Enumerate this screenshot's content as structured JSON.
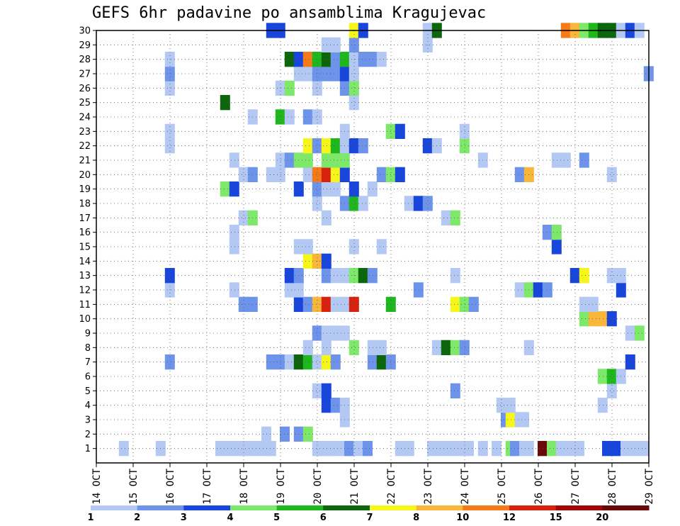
{
  "chart_data": {
    "type": "heatmap",
    "title": "GEFS 6hr padavine po ansamblima Kragujevac",
    "xlabel": "",
    "ylabel": "",
    "x_tick_labels": [
      "14 OCT",
      "15 OCT",
      "16 OCT",
      "17 OCT",
      "18 OCT",
      "19 OCT",
      "20 OCT",
      "21 OCT",
      "22 OCT",
      "23 OCT",
      "24 OCT",
      "25 OCT",
      "26 OCT",
      "27 OCT",
      "28 OCT",
      "29 OCT"
    ],
    "y_tick_labels": [
      "1",
      "2",
      "3",
      "4",
      "5",
      "6",
      "7",
      "8",
      "9",
      "10",
      "11",
      "12",
      "13",
      "14",
      "15",
      "16",
      "17",
      "18",
      "19",
      "20",
      "21",
      "22",
      "23",
      "24",
      "25",
      "26",
      "27",
      "28",
      "29",
      "30"
    ],
    "x_range_days": [
      0,
      15
    ],
    "y_range_members": [
      0,
      30
    ],
    "x_step_hours": 6,
    "grid": true,
    "colorbar": {
      "labels": [
        "1",
        "2",
        "3",
        "4",
        "5",
        "6",
        "7",
        "8",
        "10",
        "12",
        "15",
        "20"
      ],
      "colors": [
        "#b4c8f4",
        "#6d93ea",
        "#1846dc",
        "#7de86a",
        "#1eb81e",
        "#0c660c",
        "#f6f61a",
        "#f8b63a",
        "#f57a18",
        "#d8220e",
        "#a00808",
        "#6a0808"
      ]
    },
    "cells": [
      [
        0.63,
        1,
        1
      ],
      [
        1.63,
        1,
        1
      ],
      [
        3.25,
        1,
        1
      ],
      [
        3.5,
        1,
        1
      ],
      [
        3.75,
        1,
        1
      ],
      [
        4.0,
        1,
        1
      ],
      [
        4.25,
        1,
        1
      ],
      [
        4.5,
        1,
        1
      ],
      [
        4.63,
        1,
        1
      ],
      [
        5.88,
        1,
        1
      ],
      [
        6.0,
        1,
        1
      ],
      [
        6.13,
        1,
        1
      ],
      [
        6.25,
        1,
        1
      ],
      [
        6.38,
        1,
        1
      ],
      [
        6.63,
        1,
        1
      ],
      [
        6.75,
        1,
        2
      ],
      [
        7.0,
        1,
        1
      ],
      [
        7.25,
        1,
        2
      ],
      [
        8.13,
        1,
        1
      ],
      [
        8.25,
        1,
        1
      ],
      [
        8.38,
        1,
        1
      ],
      [
        9.0,
        1,
        1
      ],
      [
        9.25,
        1,
        1
      ],
      [
        9.5,
        1,
        1
      ],
      [
        9.75,
        1,
        1
      ],
      [
        10.0,
        1,
        1
      ],
      [
        10.38,
        1,
        1
      ],
      [
        10.75,
        1,
        1
      ],
      [
        11.13,
        1,
        4
      ],
      [
        11.25,
        1,
        2
      ],
      [
        11.5,
        1,
        1
      ],
      [
        11.63,
        1,
        1
      ],
      [
        12.0,
        1,
        12
      ],
      [
        12.25,
        1,
        4
      ],
      [
        12.5,
        1,
        1
      ],
      [
        12.75,
        1,
        1
      ],
      [
        13.0,
        1,
        1
      ],
      [
        13.75,
        1,
        3
      ],
      [
        14.0,
        1,
        3
      ],
      [
        14.25,
        1,
        1
      ],
      [
        14.5,
        1,
        1
      ],
      [
        14.75,
        1,
        1
      ],
      [
        4.5,
        2,
        1
      ],
      [
        5.0,
        2,
        2
      ],
      [
        5.38,
        2,
        2
      ],
      [
        5.63,
        2,
        4
      ],
      [
        6.63,
        3,
        1
      ],
      [
        11.0,
        3,
        2
      ],
      [
        11.13,
        3,
        7
      ],
      [
        11.38,
        3,
        1
      ],
      [
        11.5,
        3,
        1
      ],
      [
        6.13,
        4,
        3
      ],
      [
        6.38,
        4,
        2
      ],
      [
        6.63,
        4,
        1
      ],
      [
        10.88,
        4,
        1
      ],
      [
        11.13,
        4,
        1
      ],
      [
        13.63,
        4,
        1
      ],
      [
        5.88,
        5,
        1
      ],
      [
        6.13,
        5,
        3
      ],
      [
        9.63,
        5,
        2
      ],
      [
        13.88,
        5,
        1
      ],
      [
        13.63,
        6,
        4
      ],
      [
        13.88,
        6,
        5
      ],
      [
        14.13,
        6,
        1
      ],
      [
        1.88,
        7,
        2
      ],
      [
        4.63,
        7,
        2
      ],
      [
        4.88,
        7,
        2
      ],
      [
        5.13,
        7,
        1
      ],
      [
        5.38,
        7,
        6
      ],
      [
        5.63,
        7,
        5
      ],
      [
        5.88,
        7,
        1
      ],
      [
        6.13,
        7,
        7
      ],
      [
        6.38,
        7,
        2
      ],
      [
        7.38,
        7,
        2
      ],
      [
        7.63,
        7,
        6
      ],
      [
        7.88,
        7,
        2
      ],
      [
        14.38,
        7,
        3
      ],
      [
        5.63,
        8,
        1
      ],
      [
        6.13,
        8,
        1
      ],
      [
        6.88,
        8,
        4
      ],
      [
        7.38,
        8,
        1
      ],
      [
        7.63,
        8,
        1
      ],
      [
        9.13,
        8,
        1
      ],
      [
        9.38,
        8,
        6
      ],
      [
        9.63,
        8,
        4
      ],
      [
        9.88,
        8,
        2
      ],
      [
        11.63,
        8,
        1
      ],
      [
        5.88,
        9,
        2
      ],
      [
        6.13,
        9,
        1
      ],
      [
        6.38,
        9,
        1
      ],
      [
        6.63,
        9,
        1
      ],
      [
        14.38,
        9,
        1
      ],
      [
        14.63,
        9,
        4
      ],
      [
        13.13,
        10,
        4
      ],
      [
        13.38,
        10,
        8
      ],
      [
        13.63,
        10,
        8
      ],
      [
        13.88,
        10,
        3
      ],
      [
        3.88,
        11,
        2
      ],
      [
        4.13,
        11,
        2
      ],
      [
        5.38,
        11,
        3
      ],
      [
        5.63,
        11,
        2
      ],
      [
        5.88,
        11,
        8
      ],
      [
        6.13,
        11,
        10
      ],
      [
        6.38,
        11,
        1
      ],
      [
        6.63,
        11,
        1
      ],
      [
        6.88,
        11,
        10
      ],
      [
        7.88,
        11,
        5
      ],
      [
        9.63,
        11,
        7
      ],
      [
        9.88,
        11,
        4
      ],
      [
        10.13,
        11,
        2
      ],
      [
        13.13,
        11,
        1
      ],
      [
        13.38,
        11,
        1
      ],
      [
        1.88,
        12,
        1
      ],
      [
        3.63,
        12,
        1
      ],
      [
        5.13,
        12,
        1
      ],
      [
        5.38,
        12,
        1
      ],
      [
        8.63,
        12,
        2
      ],
      [
        11.38,
        12,
        1
      ],
      [
        11.63,
        12,
        4
      ],
      [
        11.88,
        12,
        3
      ],
      [
        12.13,
        12,
        2
      ],
      [
        14.13,
        12,
        3
      ],
      [
        1.88,
        13,
        3
      ],
      [
        5.13,
        13,
        3
      ],
      [
        5.38,
        13,
        2
      ],
      [
        6.13,
        13,
        2
      ],
      [
        6.38,
        13,
        1
      ],
      [
        6.63,
        13,
        1
      ],
      [
        6.88,
        13,
        4
      ],
      [
        7.13,
        13,
        6
      ],
      [
        7.38,
        13,
        2
      ],
      [
        9.63,
        13,
        1
      ],
      [
        12.88,
        13,
        3
      ],
      [
        13.13,
        13,
        7
      ],
      [
        13.88,
        13,
        1
      ],
      [
        14.13,
        13,
        1
      ],
      [
        5.63,
        14,
        7
      ],
      [
        5.88,
        14,
        8
      ],
      [
        6.13,
        14,
        3
      ],
      [
        3.63,
        15,
        1
      ],
      [
        5.38,
        15,
        1
      ],
      [
        5.63,
        15,
        1
      ],
      [
        6.88,
        15,
        1
      ],
      [
        7.63,
        15,
        1
      ],
      [
        12.38,
        15,
        3
      ],
      [
        3.63,
        16,
        1
      ],
      [
        12.13,
        16,
        2
      ],
      [
        12.38,
        16,
        4
      ],
      [
        3.88,
        17,
        1
      ],
      [
        4.13,
        17,
        4
      ],
      [
        6.13,
        17,
        1
      ],
      [
        9.38,
        17,
        1
      ],
      [
        9.63,
        17,
        4
      ],
      [
        5.88,
        18,
        1
      ],
      [
        6.63,
        18,
        2
      ],
      [
        6.88,
        18,
        5
      ],
      [
        7.13,
        18,
        1
      ],
      [
        8.38,
        18,
        1
      ],
      [
        8.63,
        18,
        3
      ],
      [
        8.88,
        18,
        2
      ],
      [
        3.38,
        19,
        4
      ],
      [
        3.63,
        19,
        3
      ],
      [
        5.38,
        19,
        3
      ],
      [
        5.88,
        19,
        2
      ],
      [
        6.13,
        19,
        1
      ],
      [
        6.38,
        19,
        1
      ],
      [
        6.88,
        19,
        3
      ],
      [
        7.38,
        19,
        1
      ],
      [
        3.88,
        20,
        1
      ],
      [
        4.13,
        20,
        2
      ],
      [
        4.63,
        20,
        1
      ],
      [
        4.88,
        20,
        1
      ],
      [
        5.63,
        20,
        1
      ],
      [
        5.88,
        20,
        9
      ],
      [
        6.13,
        20,
        10
      ],
      [
        6.38,
        20,
        7
      ],
      [
        6.63,
        20,
        3
      ],
      [
        7.63,
        20,
        2
      ],
      [
        7.88,
        20,
        4
      ],
      [
        8.13,
        20,
        3
      ],
      [
        11.38,
        20,
        2
      ],
      [
        11.63,
        20,
        8
      ],
      [
        13.88,
        20,
        1
      ],
      [
        3.63,
        21,
        1
      ],
      [
        4.88,
        21,
        1
      ],
      [
        5.13,
        21,
        2
      ],
      [
        5.38,
        21,
        4
      ],
      [
        5.63,
        21,
        4
      ],
      [
        6.13,
        21,
        4
      ],
      [
        6.38,
        21,
        4
      ],
      [
        6.63,
        21,
        4
      ],
      [
        10.38,
        21,
        1
      ],
      [
        12.38,
        21,
        1
      ],
      [
        12.63,
        21,
        1
      ],
      [
        13.13,
        21,
        2
      ],
      [
        1.88,
        22,
        1
      ],
      [
        5.63,
        22,
        7
      ],
      [
        5.88,
        22,
        2
      ],
      [
        6.13,
        22,
        7
      ],
      [
        6.38,
        22,
        5
      ],
      [
        6.63,
        22,
        1
      ],
      [
        6.88,
        22,
        3
      ],
      [
        7.13,
        22,
        2
      ],
      [
        8.88,
        22,
        3
      ],
      [
        9.13,
        22,
        1
      ],
      [
        9.88,
        22,
        4
      ],
      [
        1.88,
        23,
        1
      ],
      [
        6.63,
        23,
        1
      ],
      [
        7.88,
        23,
        4
      ],
      [
        8.13,
        23,
        3
      ],
      [
        9.88,
        23,
        1
      ],
      [
        4.13,
        24,
        1
      ],
      [
        4.88,
        24,
        5
      ],
      [
        5.13,
        24,
        1
      ],
      [
        5.63,
        24,
        2
      ],
      [
        5.88,
        24,
        1
      ],
      [
        3.38,
        25,
        6
      ],
      [
        6.88,
        25,
        1
      ],
      [
        1.88,
        26,
        1
      ],
      [
        4.88,
        26,
        1
      ],
      [
        5.13,
        26,
        4
      ],
      [
        5.88,
        26,
        1
      ],
      [
        6.63,
        26,
        2
      ],
      [
        6.88,
        26,
        4
      ],
      [
        1.88,
        27,
        2
      ],
      [
        5.38,
        27,
        1
      ],
      [
        5.63,
        27,
        1
      ],
      [
        5.88,
        27,
        2
      ],
      [
        6.13,
        27,
        2
      ],
      [
        6.38,
        27,
        2
      ],
      [
        6.63,
        27,
        3
      ],
      [
        6.88,
        27,
        1
      ],
      [
        14.88,
        27,
        2
      ],
      [
        1.88,
        28,
        1
      ],
      [
        5.13,
        28,
        6
      ],
      [
        5.38,
        28,
        3
      ],
      [
        5.63,
        28,
        9
      ],
      [
        5.88,
        28,
        5
      ],
      [
        6.13,
        28,
        6
      ],
      [
        6.38,
        28,
        2
      ],
      [
        6.63,
        28,
        5
      ],
      [
        6.88,
        28,
        1
      ],
      [
        7.13,
        28,
        2
      ],
      [
        7.38,
        28,
        2
      ],
      [
        7.63,
        28,
        1
      ],
      [
        6.13,
        29,
        1
      ],
      [
        6.38,
        29,
        1
      ],
      [
        6.88,
        29,
        2
      ],
      [
        8.88,
        29,
        1
      ],
      [
        4.63,
        30,
        3
      ],
      [
        4.88,
        30,
        3
      ],
      [
        6.88,
        30,
        7
      ],
      [
        7.13,
        30,
        3
      ],
      [
        8.88,
        30,
        1
      ],
      [
        9.13,
        30,
        6
      ],
      [
        12.63,
        30,
        9
      ],
      [
        12.88,
        30,
        8
      ],
      [
        13.13,
        30,
        4
      ],
      [
        13.38,
        30,
        5
      ],
      [
        13.63,
        30,
        6
      ],
      [
        13.88,
        30,
        6
      ],
      [
        14.13,
        30,
        1
      ],
      [
        14.38,
        30,
        3
      ],
      [
        14.63,
        30,
        1
      ]
    ]
  }
}
